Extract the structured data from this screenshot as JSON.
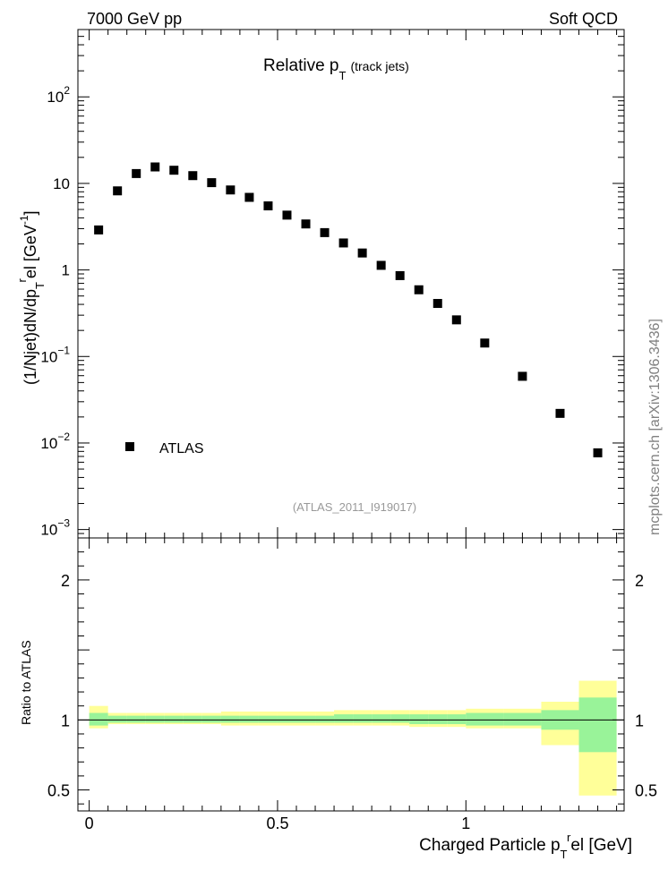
{
  "header": {
    "left": "7000 GeV pp",
    "right": "Soft QCD"
  },
  "watermark": "mcplots.cern.ch [arXiv:1306.3436]",
  "analysis_tag": "(ATLAS_2011_I919017)",
  "colors": {
    "data": "#000000",
    "band_inner": "#99f399",
    "band_outer": "#ffff99",
    "tag_text": "#999999",
    "watermark_text": "#808080"
  },
  "chart_data": [
    {
      "type": "scatter",
      "panel": "main",
      "title": "Relative p_T (track jets)",
      "title_parts": {
        "main": "Relative p",
        "sub": "T",
        "suffix": "(track jets)"
      },
      "ylabel": "(1/Njet)dN/dp_T^rel [GeV^-1]",
      "ylabel_parts": {
        "a": "(1/Njet)dN/dp",
        "sub": "T",
        "sup": "r",
        "b": "el [GeV",
        "sup2": "-1",
        "c": "]"
      },
      "yscale": "log",
      "ylim": [
        0.0008,
        600
      ],
      "xlim": [
        -0.03,
        1.42
      ],
      "y_ticks": [
        {
          "value": 0.001,
          "base": "10",
          "exp": "−3"
        },
        {
          "value": 0.01,
          "base": "10",
          "exp": "−2"
        },
        {
          "value": 0.1,
          "base": "10",
          "exp": "−1"
        },
        {
          "value": 1,
          "base": "1",
          "exp": ""
        },
        {
          "value": 10,
          "base": "10",
          "exp": ""
        },
        {
          "value": 100,
          "base": "10",
          "exp": "2"
        }
      ],
      "legend_placement": "bottom-left",
      "series": [
        {
          "name": "ATLAS",
          "x": [
            0.025,
            0.075,
            0.125,
            0.175,
            0.225,
            0.275,
            0.325,
            0.375,
            0.425,
            0.475,
            0.525,
            0.575,
            0.625,
            0.675,
            0.725,
            0.775,
            0.825,
            0.875,
            0.925,
            0.975,
            1.05,
            1.15,
            1.25,
            1.35
          ],
          "y": [
            2.9,
            8.2,
            13.0,
            15.5,
            14.2,
            12.3,
            10.2,
            8.4,
            6.9,
            5.5,
            4.3,
            3.4,
            2.7,
            2.05,
            1.57,
            1.13,
            0.86,
            0.59,
            0.41,
            0.265,
            0.143,
            0.059,
            0.022,
            0.0077
          ]
        }
      ]
    },
    {
      "type": "area",
      "panel": "ratio",
      "ylabel": "Ratio to ATLAS",
      "xlabel": "Charged Particle p_T^rel [GeV]",
      "xlabel_parts": {
        "a": "Charged Particle p",
        "sub": "T",
        "sup": "r",
        "b": "el [GeV]"
      },
      "ylim": [
        0.35,
        2.3
      ],
      "xlim": [
        -0.03,
        1.42
      ],
      "y_ticks": [
        0.5,
        1,
        2
      ],
      "y_tick_labels": [
        "0.5",
        "1",
        "2"
      ],
      "x_ticks": [
        0,
        0.5,
        1
      ],
      "x_tick_labels": [
        "0",
        "0.5",
        "1"
      ],
      "reference_line": 1,
      "bins": {
        "edges": [
          0,
          0.05,
          0.1,
          0.15,
          0.2,
          0.25,
          0.3,
          0.35,
          0.4,
          0.45,
          0.5,
          0.55,
          0.6,
          0.65,
          0.7,
          0.75,
          0.8,
          0.85,
          0.9,
          0.95,
          1.0,
          1.1,
          1.2,
          1.3,
          1.4
        ],
        "inner_low": [
          0.96,
          0.98,
          0.98,
          0.98,
          0.98,
          0.98,
          0.98,
          0.98,
          0.98,
          0.98,
          0.98,
          0.98,
          0.98,
          0.98,
          0.98,
          0.98,
          0.98,
          0.97,
          0.97,
          0.97,
          0.96,
          0.96,
          0.93,
          0.77
        ],
        "inner_high": [
          1.05,
          1.03,
          1.03,
          1.03,
          1.03,
          1.03,
          1.03,
          1.03,
          1.03,
          1.03,
          1.03,
          1.03,
          1.03,
          1.04,
          1.04,
          1.04,
          1.04,
          1.04,
          1.04,
          1.04,
          1.05,
          1.05,
          1.07,
          1.16
        ],
        "outer_low": [
          0.94,
          0.97,
          0.97,
          0.97,
          0.97,
          0.97,
          0.97,
          0.96,
          0.96,
          0.96,
          0.96,
          0.96,
          0.96,
          0.96,
          0.96,
          0.96,
          0.96,
          0.95,
          0.95,
          0.95,
          0.94,
          0.94,
          0.82,
          0.46
        ],
        "outer_high": [
          1.1,
          1.05,
          1.05,
          1.05,
          1.05,
          1.05,
          1.05,
          1.06,
          1.06,
          1.06,
          1.06,
          1.06,
          1.06,
          1.07,
          1.07,
          1.07,
          1.07,
          1.07,
          1.07,
          1.07,
          1.08,
          1.08,
          1.13,
          1.28
        ]
      }
    }
  ]
}
